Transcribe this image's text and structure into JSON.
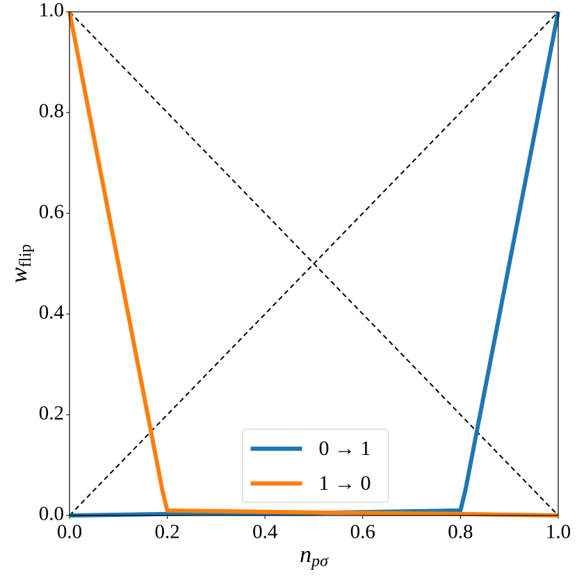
{
  "chart_data": {
    "type": "line",
    "x_label": {
      "base": "n",
      "sub": "pσ"
    },
    "y_label": {
      "base": "w",
      "sub": "flip"
    },
    "xlim": [
      0,
      1
    ],
    "ylim": [
      0,
      1
    ],
    "xticks": [
      {
        "value": 0,
        "label": "0.0"
      },
      0.2,
      0.4,
      0.6,
      0.8,
      {
        "value": 1,
        "label": "1.0"
      }
    ],
    "yticks": [
      {
        "value": 0,
        "label": "0.0"
      },
      0.2,
      0.4,
      0.6,
      0.8,
      {
        "value": 1,
        "label": "1.0"
      }
    ],
    "legend": "lower center",
    "series": [
      {
        "name": "0 → 1",
        "color": "#1f77b4",
        "x": [
          0,
          0.2,
          0.5,
          0.8,
          0.81,
          1.0
        ],
        "values": [
          0,
          0.003,
          0.005,
          0.01,
          0.05,
          1.0
        ]
      },
      {
        "name": "1 → 0",
        "color": "#ff7f0e",
        "x": [
          0,
          0.19,
          0.2,
          0.5,
          0.8,
          1.0
        ],
        "values": [
          1.0,
          0.05,
          0.01,
          0.006,
          0.003,
          0
        ]
      }
    ],
    "reference_lines": [
      {
        "x": [
          0,
          1
        ],
        "values": [
          0,
          1
        ],
        "color": "#000000"
      },
      {
        "x": [
          0,
          1
        ],
        "values": [
          1,
          0
        ],
        "color": "#000000"
      }
    ]
  }
}
